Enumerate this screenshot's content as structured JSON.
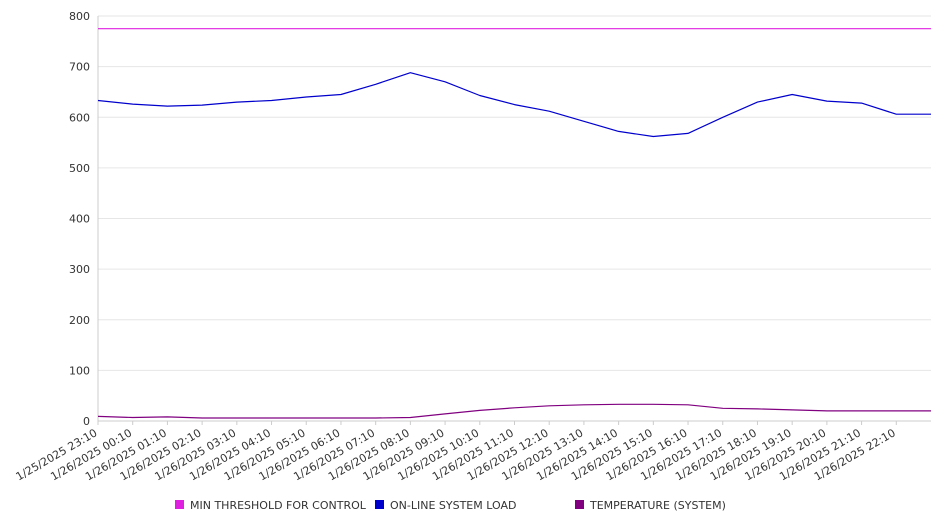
{
  "chart_data": {
    "type": "line",
    "title": "",
    "xlabel": "",
    "ylabel": "",
    "ylim": [
      0,
      800
    ],
    "y_ticks": [
      0,
      100,
      200,
      300,
      400,
      500,
      600,
      700,
      800
    ],
    "grid": "horizontal",
    "legend_position": "bottom",
    "x_tick_labels": [
      "1/25/2025 23:10",
      "1/26/2025 00:10",
      "1/26/2025 01:10",
      "1/26/2025 02:10",
      "1/26/2025 03:10",
      "1/26/2025 04:10",
      "1/26/2025 05:10",
      "1/26/2025 06:10",
      "1/26/2025 07:10",
      "1/26/2025 08:10",
      "1/26/2025 09:10",
      "1/26/2025 10:10",
      "1/26/2025 11:10",
      "1/26/2025 12:10",
      "1/26/2025 13:10",
      "1/26/2025 14:10",
      "1/26/2025 15:10",
      "1/26/2025 16:10",
      "1/26/2025 17:10",
      "1/26/2025 18:10",
      "1/26/2025 19:10",
      "1/26/2025 20:10",
      "1/26/2025 21:10",
      "1/26/2025 22:10"
    ],
    "series": [
      {
        "name": "MIN THRESHOLD FOR CONTROL",
        "color": "#e020e0",
        "values": [
          775,
          775,
          775,
          775,
          775,
          775,
          775,
          775,
          775,
          775,
          775,
          775,
          775,
          775,
          775,
          775,
          775,
          775,
          775,
          775,
          775,
          775,
          775,
          775
        ]
      },
      {
        "name": "ON-LINE SYSTEM LOAD",
        "color": "#0000cc",
        "values": [
          633,
          626,
          622,
          624,
          630,
          633,
          640,
          645,
          665,
          688,
          670,
          643,
          625,
          612,
          592,
          572,
          562,
          568,
          600,
          630,
          645,
          632,
          628,
          606
        ]
      },
      {
        "name": "TEMPERATURE (SYSTEM)",
        "color": "#800080",
        "values": [
          9,
          7,
          8,
          6,
          6,
          6,
          6,
          6,
          6,
          7,
          14,
          21,
          26,
          30,
          32,
          33,
          33,
          32,
          25,
          24,
          22,
          20,
          20,
          20
        ]
      }
    ]
  }
}
